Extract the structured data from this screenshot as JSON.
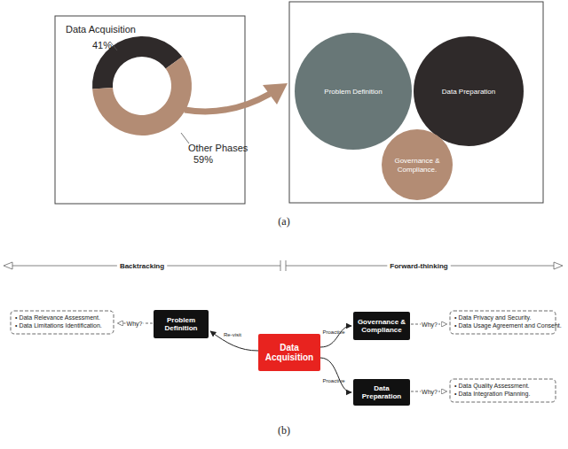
{
  "chart_data": {
    "type": "donut",
    "categories": [
      "Data Acquisition",
      "Other Phases"
    ],
    "values": [
      41,
      59
    ],
    "value_labels": [
      "41%",
      "59%"
    ],
    "colors": [
      "#2f2a2a",
      "#b38c74"
    ],
    "data_labels": true
  },
  "bubbles": [
    {
      "lines": [
        "Problem Definition"
      ]
    },
    {
      "lines": [
        "Data Preparation"
      ]
    },
    {
      "lines": [
        "Governance &",
        "Compliance."
      ]
    }
  ],
  "panel_labels": [
    "(a)",
    "(b)"
  ],
  "timeline": {
    "left": "Backtracking",
    "right": "Forward-thinking"
  },
  "center_node": {
    "lines": [
      "Data",
      "Acquisition"
    ]
  },
  "nodes": [
    {
      "lines": [
        "Problem",
        "Definition"
      ],
      "edge_label": "Re-visit",
      "why": "Why?",
      "bullets": [
        "• Data Relevance Assessment.",
        "• Data Limitations Identification."
      ]
    },
    {
      "lines": [
        "Governance  &",
        "Compliance"
      ],
      "edge_label": "Proactive",
      "why": "Why?",
      "bullets": [
        "• Data Privacy and Security.",
        "• Data Usage Agreement and Consent."
      ]
    },
    {
      "lines": [
        "Data",
        "Preparation"
      ],
      "edge_label": "Proactive",
      "why": "Why?",
      "bullets": [
        "• Data Quality Assessment.",
        "• Data Integration Planning."
      ]
    }
  ]
}
